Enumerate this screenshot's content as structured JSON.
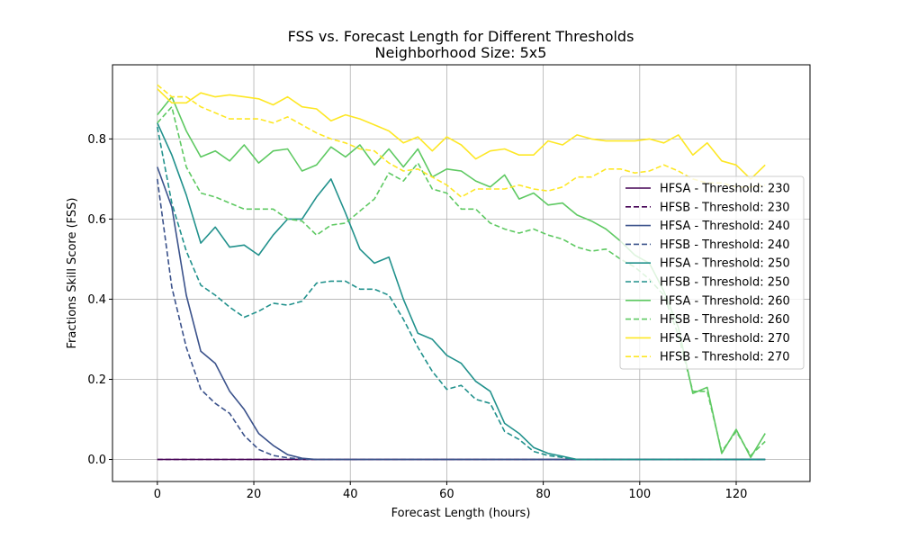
{
  "chart_data": {
    "type": "line",
    "title": "FSS vs. Forecast Length for Different Thresholds",
    "subtitle": "Neighborhood Size: 5x5",
    "xlabel": "Forecast Length (hours)",
    "ylabel": "Fractions Skill Score (FSS)",
    "xlim": [
      -9.3,
      135.3
    ],
    "ylim": [
      -0.055,
      0.985
    ],
    "xticks": [
      0,
      20,
      40,
      60,
      80,
      100,
      120
    ],
    "yticks": [
      0.0,
      0.2,
      0.4,
      0.6,
      0.8
    ],
    "xtick_labels": [
      "0",
      "20",
      "40",
      "60",
      "80",
      "100",
      "120"
    ],
    "ytick_labels": [
      "0.0",
      "0.2",
      "0.4",
      "0.6",
      "0.8"
    ],
    "grid": true,
    "legend_position": "center-right",
    "x": [
      0,
      3,
      6,
      9,
      12,
      15,
      18,
      21,
      24,
      27,
      30,
      33,
      36,
      39,
      42,
      45,
      48,
      51,
      54,
      57,
      60,
      63,
      66,
      69,
      72,
      75,
      78,
      81,
      84,
      87,
      90,
      93,
      96,
      99,
      102,
      105,
      108,
      111,
      114,
      117,
      120,
      123,
      126
    ],
    "series": [
      {
        "name": "HFSA - Threshold: 230",
        "color": "#440154",
        "dash": "solid",
        "values": [
          0,
          0,
          0,
          0,
          0,
          0,
          0,
          0,
          0,
          0,
          0,
          0,
          0,
          0,
          0,
          0,
          0,
          0,
          0,
          0,
          0,
          0,
          0,
          0,
          0,
          0,
          0,
          0,
          0,
          0,
          0,
          0,
          0,
          0,
          0,
          0,
          0,
          0,
          0,
          0,
          0,
          0,
          0
        ]
      },
      {
        "name": "HFSB - Threshold: 230",
        "color": "#440154",
        "dash": "dashed",
        "values": [
          0,
          0,
          0,
          0,
          0,
          0,
          0,
          0,
          0,
          0,
          0,
          0,
          0,
          0,
          0,
          0,
          0,
          0,
          0,
          0,
          0,
          0,
          0,
          0,
          0,
          0,
          0,
          0,
          0,
          0,
          0,
          0,
          0,
          0,
          0,
          0,
          0,
          0,
          0,
          0,
          0,
          0,
          0
        ]
      },
      {
        "name": "HFSA - Threshold: 240",
        "color": "#3b528b",
        "dash": "solid",
        "values": [
          0.73,
          0.63,
          0.41,
          0.27,
          0.24,
          0.17,
          0.125,
          0.065,
          0.035,
          0.012,
          0.003,
          0,
          0,
          0,
          0,
          0,
          0,
          0,
          0,
          0,
          0,
          0,
          0,
          0,
          0,
          0,
          0,
          0,
          0,
          0,
          0,
          0,
          0,
          0,
          0,
          0,
          0,
          0,
          0,
          0,
          0,
          0,
          0
        ]
      },
      {
        "name": "HFSB - Threshold: 240",
        "color": "#3b528b",
        "dash": "dashed",
        "values": [
          0.7,
          0.43,
          0.28,
          0.175,
          0.14,
          0.115,
          0.06,
          0.025,
          0.01,
          0.004,
          0.001,
          0,
          0,
          0,
          0,
          0,
          0,
          0,
          0,
          0,
          0,
          0,
          0,
          0,
          0,
          0,
          0,
          0,
          0,
          0,
          0,
          0,
          0,
          0,
          0,
          0,
          0,
          0,
          0,
          0,
          0,
          0,
          0
        ]
      },
      {
        "name": "HFSA - Threshold: 250",
        "color": "#21918c",
        "dash": "solid",
        "values": [
          0.84,
          0.76,
          0.66,
          0.54,
          0.58,
          0.53,
          0.535,
          0.51,
          0.56,
          0.6,
          0.6,
          0.655,
          0.7,
          0.615,
          0.525,
          0.49,
          0.505,
          0.4,
          0.315,
          0.3,
          0.26,
          0.24,
          0.195,
          0.17,
          0.09,
          0.065,
          0.03,
          0.015,
          0.008,
          0,
          0,
          0,
          0,
          0,
          0,
          0,
          0,
          0,
          0,
          0,
          0,
          0,
          0
        ]
      },
      {
        "name": "HFSB - Threshold: 250",
        "color": "#21918c",
        "dash": "dashed",
        "values": [
          0.83,
          0.64,
          0.52,
          0.435,
          0.41,
          0.38,
          0.355,
          0.37,
          0.39,
          0.385,
          0.395,
          0.44,
          0.445,
          0.445,
          0.425,
          0.425,
          0.41,
          0.35,
          0.28,
          0.22,
          0.175,
          0.185,
          0.15,
          0.14,
          0.07,
          0.05,
          0.02,
          0.01,
          0.005,
          0,
          0,
          0,
          0,
          0,
          0,
          0,
          0,
          0,
          0,
          0,
          0,
          0,
          0
        ]
      },
      {
        "name": "HFSA - Threshold: 260",
        "color": "#5ec962",
        "dash": "solid",
        "values": [
          0.86,
          0.905,
          0.82,
          0.755,
          0.77,
          0.745,
          0.785,
          0.74,
          0.77,
          0.775,
          0.72,
          0.735,
          0.78,
          0.755,
          0.785,
          0.735,
          0.775,
          0.73,
          0.775,
          0.705,
          0.725,
          0.72,
          0.695,
          0.68,
          0.71,
          0.65,
          0.665,
          0.635,
          0.64,
          0.61,
          0.595,
          0.575,
          0.545,
          0.51,
          0.49,
          0.42,
          0.33,
          0.165,
          0.18,
          0.015,
          0.075,
          0.005,
          0.065
        ]
      },
      {
        "name": "HFSB - Threshold: 260",
        "color": "#5ec962",
        "dash": "dashed",
        "values": [
          0.84,
          0.88,
          0.73,
          0.665,
          0.655,
          0.64,
          0.625,
          0.625,
          0.625,
          0.6,
          0.595,
          0.56,
          0.585,
          0.59,
          0.62,
          0.65,
          0.715,
          0.695,
          0.74,
          0.675,
          0.665,
          0.625,
          0.625,
          0.59,
          0.575,
          0.565,
          0.575,
          0.56,
          0.55,
          0.53,
          0.52,
          0.525,
          0.5,
          0.48,
          0.45,
          0.41,
          0.31,
          0.17,
          0.17,
          0.02,
          0.07,
          0.01,
          0.045
        ]
      },
      {
        "name": "HFSA - Threshold: 270",
        "color": "#fde725",
        "dash": "solid",
        "values": [
          0.925,
          0.89,
          0.89,
          0.915,
          0.905,
          0.91,
          0.905,
          0.9,
          0.885,
          0.905,
          0.88,
          0.875,
          0.845,
          0.86,
          0.85,
          0.835,
          0.82,
          0.79,
          0.805,
          0.77,
          0.805,
          0.785,
          0.75,
          0.77,
          0.775,
          0.76,
          0.76,
          0.795,
          0.785,
          0.81,
          0.8,
          0.795,
          0.795,
          0.795,
          0.8,
          0.79,
          0.81,
          0.76,
          0.79,
          0.745,
          0.735,
          0.7,
          0.735
        ]
      },
      {
        "name": "HFSB - Threshold: 270",
        "color": "#fde725",
        "dash": "dashed",
        "values": [
          0.935,
          0.905,
          0.905,
          0.88,
          0.865,
          0.85,
          0.85,
          0.85,
          0.84,
          0.855,
          0.835,
          0.815,
          0.8,
          0.79,
          0.775,
          0.77,
          0.74,
          0.72,
          0.725,
          0.705,
          0.685,
          0.655,
          0.675,
          0.675,
          0.675,
          0.685,
          0.675,
          0.67,
          0.68,
          0.705,
          0.705,
          0.725,
          0.725,
          0.715,
          0.72,
          0.735,
          0.72,
          0.7,
          0.69,
          0.69,
          0.68,
          0.68,
          0.685
        ]
      }
    ]
  }
}
